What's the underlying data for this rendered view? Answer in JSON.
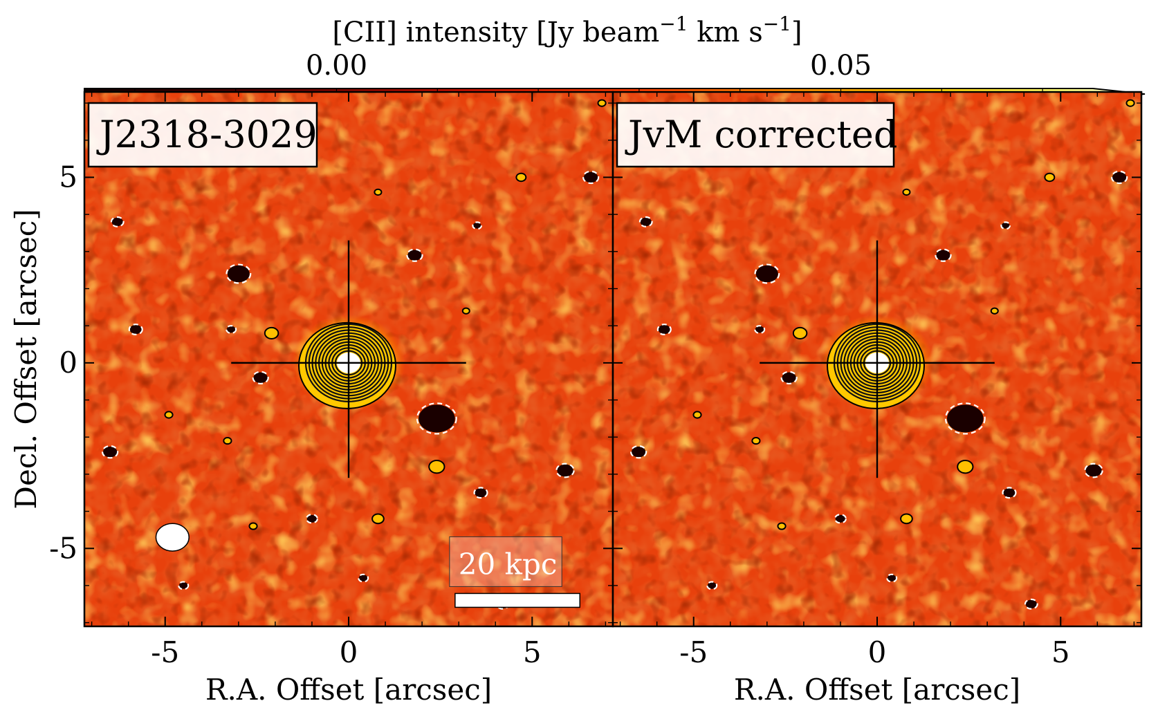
{
  "chart_data": {
    "type": "heatmap",
    "colorbar": {
      "label": "[CII] intensity [Jy beam−1 km s−1]",
      "label_base": "[CII] intensity [Jy",
      "label_beam": "beam",
      "label_km": "km",
      "label_s": "s",
      "label_close": "]",
      "exponent": "−1",
      "ticks": [
        0.0,
        0.05
      ],
      "tick_labels": [
        "0.00",
        "0.05"
      ],
      "vmin": -0.025,
      "vmax": 0.075,
      "colormap": "hot",
      "extend": "max"
    },
    "xlabel": "R.A. Offset [arcsec]",
    "ylabel": "Decl. Offset [arcsec]",
    "xlim": [
      -7.2,
      7.2
    ],
    "ylim": [
      -7.1,
      7.3
    ],
    "xticks": [
      -5,
      0,
      5
    ],
    "xtick_labels": [
      "-5",
      "0",
      "5"
    ],
    "yticks": [
      -5,
      0,
      5
    ],
    "ytick_labels": [
      "-5",
      "0",
      "5"
    ],
    "panels": [
      {
        "title": "J2318-3029",
        "beam": {
          "x": -4.8,
          "y": -4.7,
          "major": 0.9,
          "minor": 0.75
        },
        "scalebar": {
          "label": "20 kpc",
          "x_start": 2.9,
          "x_end": 6.3,
          "y": -6.4
        }
      },
      {
        "title": "JvM corrected"
      }
    ],
    "source": {
      "x": 0,
      "y": 0,
      "contour_levels": 12
    },
    "negative_blobs": [
      {
        "x": 2.4,
        "y": -1.5,
        "size": 0.9
      },
      {
        "x": -3.0,
        "y": 2.4,
        "size": 0.55
      },
      {
        "x": 1.8,
        "y": 2.9,
        "size": 0.35
      },
      {
        "x": -2.4,
        "y": -0.4,
        "size": 0.35
      },
      {
        "x": 5.9,
        "y": -2.9,
        "size": 0.4
      },
      {
        "x": 6.6,
        "y": 5.0,
        "size": 0.35
      },
      {
        "x": -6.5,
        "y": -2.4,
        "size": 0.35
      },
      {
        "x": 3.6,
        "y": -3.5,
        "size": 0.3
      },
      {
        "x": -6.3,
        "y": 3.8,
        "size": 0.28
      },
      {
        "x": -5.8,
        "y": 0.9,
        "size": 0.3
      },
      {
        "x": -3.2,
        "y": 0.9,
        "size": 0.22
      },
      {
        "x": -1.0,
        "y": -4.2,
        "size": 0.25
      },
      {
        "x": 4.2,
        "y": -6.5,
        "size": 0.28
      },
      {
        "x": 0.4,
        "y": -5.8,
        "size": 0.22
      },
      {
        "x": 3.5,
        "y": 3.7,
        "size": 0.2
      },
      {
        "x": -4.5,
        "y": -6.0,
        "size": 0.22
      }
    ],
    "positive_blobs": [
      {
        "x": -2.1,
        "y": 0.8,
        "size": 0.35
      },
      {
        "x": 2.4,
        "y": -2.8,
        "size": 0.4
      },
      {
        "x": 4.7,
        "y": 5.0,
        "size": 0.25
      },
      {
        "x": 0.8,
        "y": -4.2,
        "size": 0.3
      },
      {
        "x": -4.9,
        "y": -1.4,
        "size": 0.2
      },
      {
        "x": -3.3,
        "y": -2.1,
        "size": 0.2
      },
      {
        "x": 3.2,
        "y": 1.4,
        "size": 0.18
      },
      {
        "x": -2.6,
        "y": -4.4,
        "size": 0.2
      },
      {
        "x": 0.8,
        "y": 4.6,
        "size": 0.18
      },
      {
        "x": 6.9,
        "y": 7.0,
        "size": 0.2
      }
    ]
  }
}
